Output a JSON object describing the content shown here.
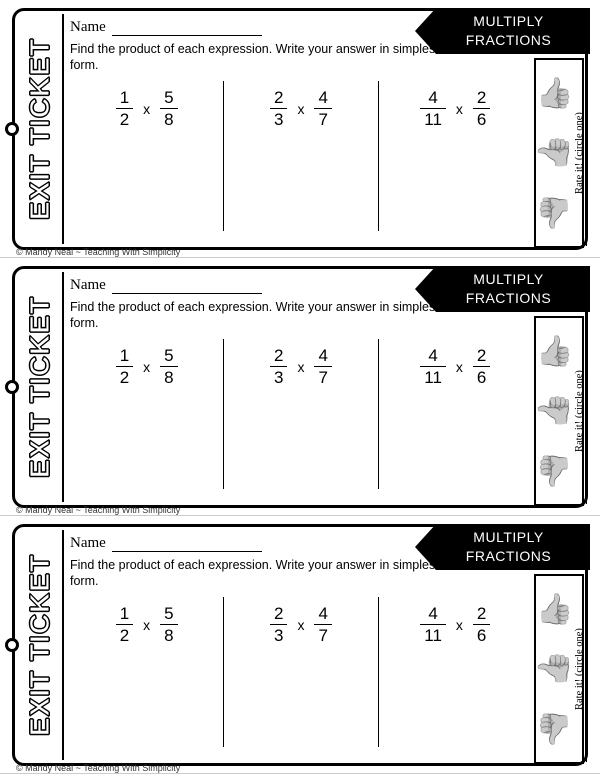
{
  "ticket_label": "EXIT TICKET",
  "name_label": "Name",
  "banner_line1": "MULTIPLY",
  "banner_line2": "FRACTIONS",
  "instructions": "Find the product of each expression. Write your answer in simplest form.",
  "problems": [
    {
      "a_num": "1",
      "a_den": "2",
      "b_num": "5",
      "b_den": "8"
    },
    {
      "a_num": "2",
      "a_den": "3",
      "b_num": "4",
      "b_den": "7"
    },
    {
      "a_num": "4",
      "a_den": "11",
      "b_num": "2",
      "b_den": "6"
    }
  ],
  "operator": "x",
  "rate_label": "Rate it! (circle one)",
  "copyright": "© Mandy Neal ~ Teaching With Simplicity",
  "colors": {
    "ink": "#000000",
    "paper": "#ffffff"
  },
  "thumb_glyph": "👍",
  "ticket_count": 3
}
